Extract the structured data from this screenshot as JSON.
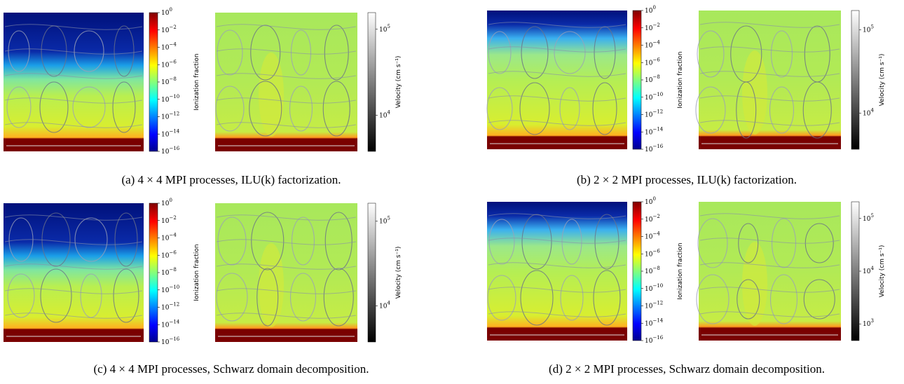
{
  "panels": [
    {
      "caption": "(a) 4 × 4 MPI processes, ILU(k) factorization.",
      "ion_colorbar": {
        "label": "Ionization fraction",
        "ticks": [
          {
            "base": "10",
            "exp": "0"
          },
          {
            "base": "10",
            "exp": "−2"
          },
          {
            "base": "10",
            "exp": "−4"
          },
          {
            "base": "10",
            "exp": "−6"
          },
          {
            "base": "10",
            "exp": "−8"
          },
          {
            "base": "10",
            "exp": "−10"
          },
          {
            "base": "10",
            "exp": "−12"
          },
          {
            "base": "10",
            "exp": "−14"
          },
          {
            "base": "10",
            "exp": "−16"
          }
        ]
      },
      "velocity_colorbar": {
        "label": "Velocity (cm s⁻¹)",
        "ticks": [
          {
            "base": "10",
            "exp": "5"
          },
          {
            "base": "10",
            "exp": "4"
          }
        ]
      }
    },
    {
      "caption": "(b) 2 × 2 MPI processes, ILU(k) factorization.",
      "ion_colorbar": {
        "label": "Ionization fraction",
        "ticks": [
          {
            "base": "10",
            "exp": "0"
          },
          {
            "base": "10",
            "exp": "−2"
          },
          {
            "base": "10",
            "exp": "−4"
          },
          {
            "base": "10",
            "exp": "−6"
          },
          {
            "base": "10",
            "exp": "−8"
          },
          {
            "base": "10",
            "exp": "−10"
          },
          {
            "base": "10",
            "exp": "−12"
          },
          {
            "base": "10",
            "exp": "−14"
          },
          {
            "base": "10",
            "exp": "−16"
          }
        ]
      },
      "velocity_colorbar": {
        "label": "Velocity (cm s⁻¹)",
        "ticks": [
          {
            "base": "10",
            "exp": "5"
          },
          {
            "base": "10",
            "exp": "4"
          }
        ]
      }
    },
    {
      "caption": "(c) 4 × 4 MPI processes, Schwarz domain decomposition.",
      "ion_colorbar": {
        "label": "Ionization fraction",
        "ticks": [
          {
            "base": "10",
            "exp": "0"
          },
          {
            "base": "10",
            "exp": "−2"
          },
          {
            "base": "10",
            "exp": "−4"
          },
          {
            "base": "10",
            "exp": "−6"
          },
          {
            "base": "10",
            "exp": "−8"
          },
          {
            "base": "10",
            "exp": "−10"
          },
          {
            "base": "10",
            "exp": "−12"
          },
          {
            "base": "10",
            "exp": "−14"
          },
          {
            "base": "10",
            "exp": "−16"
          }
        ]
      },
      "velocity_colorbar": {
        "label": "Velocity (cm s⁻¹)",
        "ticks": [
          {
            "base": "10",
            "exp": "5"
          },
          {
            "base": "10",
            "exp": "4"
          }
        ]
      }
    },
    {
      "caption": "(d) 2 × 2 MPI processes, Schwarz domain decomposition.",
      "ion_colorbar": {
        "label": "Ionization fraction",
        "ticks": [
          {
            "base": "10",
            "exp": "0"
          },
          {
            "base": "10",
            "exp": "−2"
          },
          {
            "base": "10",
            "exp": "−4"
          },
          {
            "base": "10",
            "exp": "−6"
          },
          {
            "base": "10",
            "exp": "−8"
          },
          {
            "base": "10",
            "exp": "−10"
          },
          {
            "base": "10",
            "exp": "−12"
          },
          {
            "base": "10",
            "exp": "−14"
          },
          {
            "base": "10",
            "exp": "−16"
          }
        ]
      },
      "velocity_colorbar": {
        "label": "Velocity (cm s⁻¹)",
        "ticks": [
          {
            "base": "10",
            "exp": "5"
          },
          {
            "base": "10",
            "exp": "4"
          },
          {
            "base": "10",
            "exp": "3"
          }
        ]
      }
    }
  ]
}
